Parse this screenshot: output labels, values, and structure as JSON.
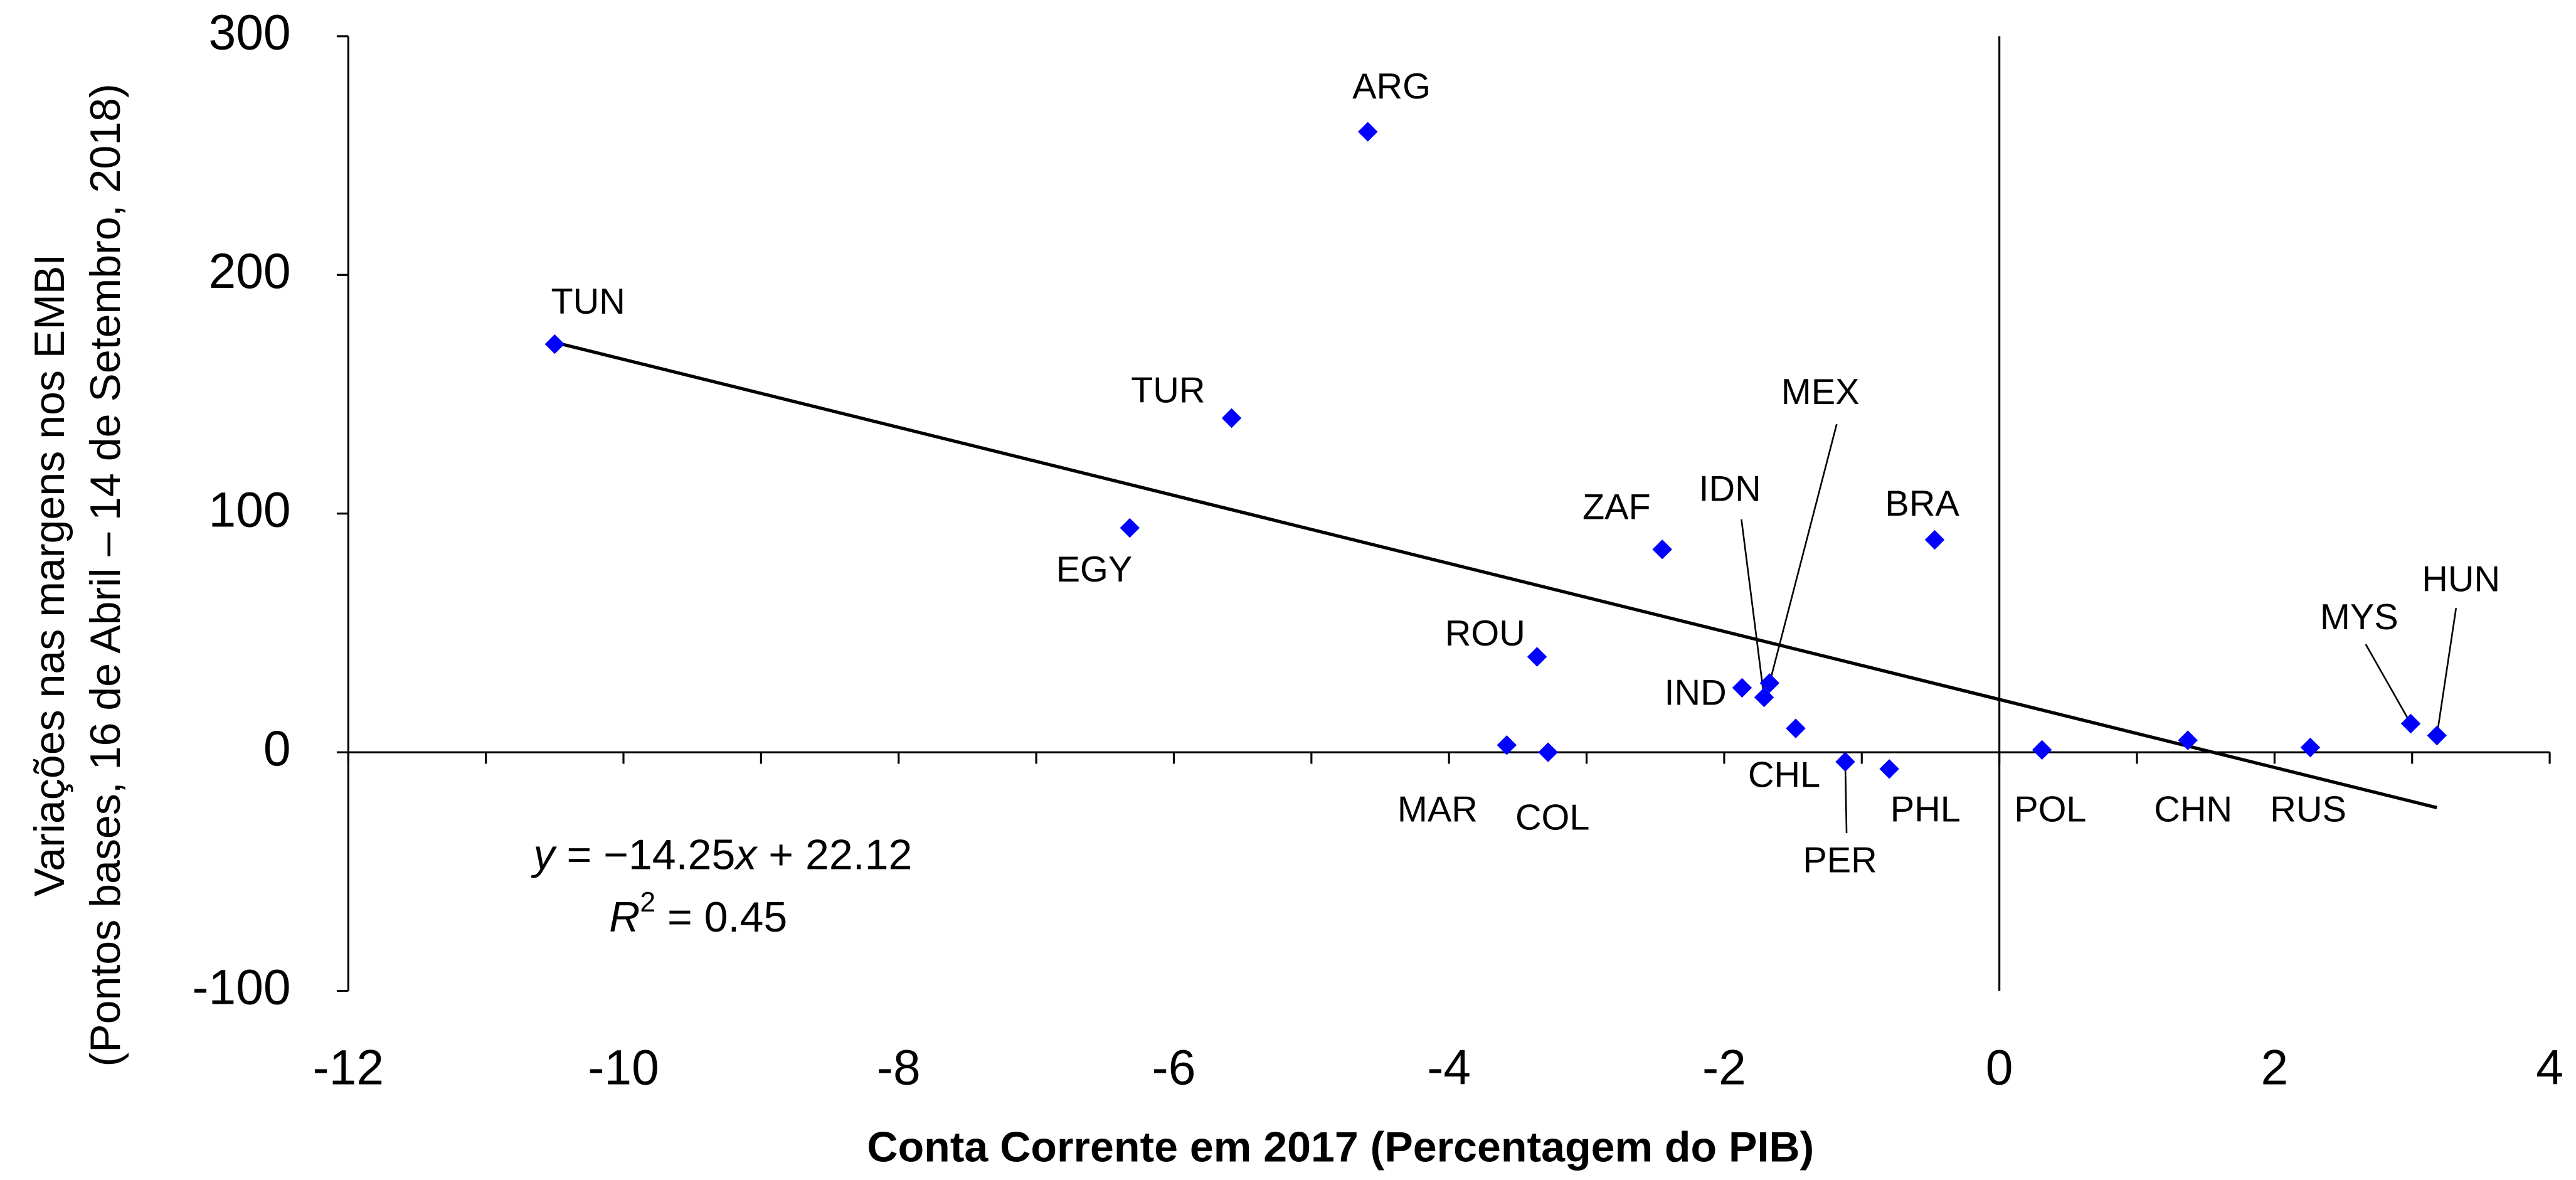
{
  "chart_data": {
    "type": "scatter",
    "xlabel": "Conta Corrente em 2017 (Percentagem do PIB)",
    "ylabel": [
      "Variações nas margens nos EMBI",
      "(Pontos bases, 16 de Abril – 14 de Setembro, 2018)"
    ],
    "labels": [
      "TUN",
      "ARG",
      "TUR",
      "EGY",
      "ZAF",
      "BRA",
      "ROU",
      "MAR",
      "COL",
      "IND",
      "IDN",
      "MEX",
      "CHL",
      "PER",
      "PHL",
      "POL",
      "CHN",
      "RUS",
      "MYS",
      "HUN"
    ],
    "x": [
      -10.5,
      -4.59,
      -5.58,
      -6.32,
      -2.45,
      -0.47,
      -3.36,
      -3.58,
      -3.28,
      -1.87,
      -1.71,
      -1.67,
      -1.48,
      -1.12,
      -0.8,
      0.31,
      1.37,
      2.26,
      2.99,
      3.18
    ],
    "values": [
      171,
      260,
      140,
      94,
      85,
      89,
      40,
      3,
      0,
      27,
      23,
      29,
      10,
      -4,
      -7,
      1,
      5,
      2,
      12,
      7
    ],
    "color": "#0000ff",
    "trendline": {
      "x": [
        -10.5,
        3.18
      ],
      "y": [
        171.75,
        -23.2
      ]
    },
    "equation": [
      "y",
      " = −14.25",
      "x",
      " + 22.12"
    ],
    "r2": [
      "R",
      "2",
      " = 0.45"
    ],
    "xlim": [
      -12,
      4
    ],
    "xticks": [
      -12,
      -10,
      -8,
      -6,
      -4,
      -2,
      0,
      2,
      4
    ],
    "xminor": [
      -11,
      -9,
      -7,
      -5,
      -3,
      -1,
      1,
      3
    ],
    "ylim": [
      -100,
      300
    ],
    "yticks": [
      -100,
      0,
      100,
      200,
      300
    ]
  }
}
